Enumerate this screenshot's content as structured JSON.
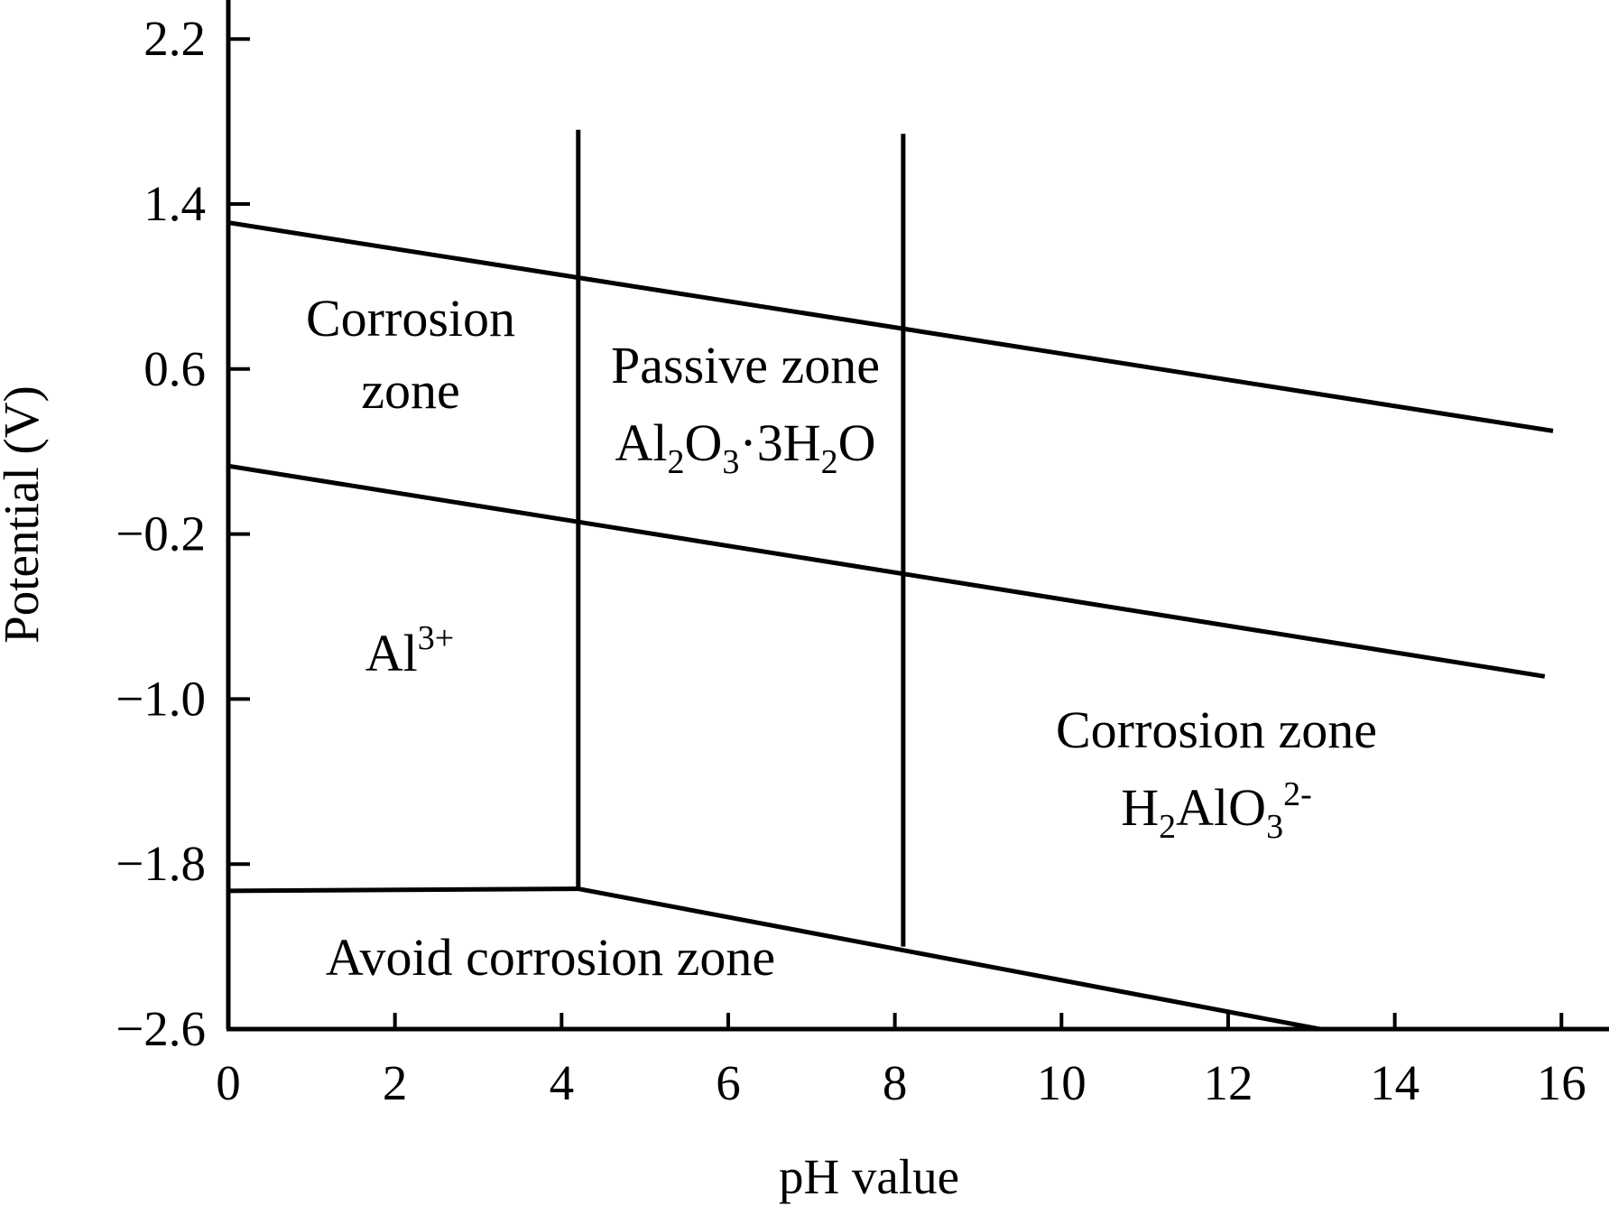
{
  "chart_data": {
    "type": "line",
    "title": "",
    "xlabel": "pH value",
    "ylabel": "Potential (V)",
    "xlim": [
      0,
      16
    ],
    "ylim": [
      -2.6,
      2.4
    ],
    "x_ticks": [
      0,
      2,
      4,
      6,
      8,
      10,
      12,
      14,
      16
    ],
    "y_ticks": [
      2.2,
      1.4,
      0.6,
      -0.2,
      -1.0,
      -1.8,
      -2.6
    ],
    "y_tick_labels": [
      "2.2",
      "1.4",
      "0.6",
      "−0.2",
      "−1.0",
      "−1.8",
      "−2.6"
    ],
    "grid": false,
    "series": [
      {
        "x": [
          0,
          15.9
        ],
        "y": [
          1.31,
          0.3
        ]
      },
      {
        "x": [
          0,
          15.8
        ],
        "y": [
          0.13,
          -0.89
        ]
      },
      {
        "x": [
          0,
          4.2,
          13.1
        ],
        "y": [
          -1.93,
          -1.92,
          -2.6
        ]
      },
      {
        "x": [
          4.2,
          4.2
        ],
        "y": [
          -1.92,
          1.76
        ]
      },
      {
        "x": [
          8.1,
          8.1
        ],
        "y": [
          -2.2,
          1.74
        ]
      }
    ],
    "annotations": [
      {
        "lines": [
          "Corrosion",
          "zone"
        ],
        "x": 2.2,
        "y": 0.82
      },
      {
        "lines": [
          "Passive zone",
          "Al2O3·3H2O"
        ],
        "x": 6.2,
        "y": 0.55
      },
      {
        "lines": [
          "Al3+"
        ],
        "x": 1.8,
        "y": -0.81
      },
      {
        "lines": [
          "Corrosion zone",
          "H2AlO3 2-"
        ],
        "x": 11.3,
        "y": -1.38
      },
      {
        "lines": [
          "Avoid corrosion zone"
        ],
        "x": 3.9,
        "y": -2.28
      }
    ]
  }
}
